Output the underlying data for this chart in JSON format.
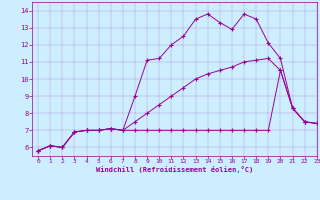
{
  "xlabel": "Windchill (Refroidissement éolien,°C)",
  "background_color": "#cceeff",
  "line_color": "#990099",
  "xlim": [
    -0.5,
    23
  ],
  "ylim": [
    5.5,
    14.5
  ],
  "xticks": [
    0,
    1,
    2,
    3,
    4,
    5,
    6,
    7,
    8,
    9,
    10,
    11,
    12,
    13,
    14,
    15,
    16,
    17,
    18,
    19,
    20,
    21,
    22,
    23
  ],
  "yticks": [
    6,
    7,
    8,
    9,
    10,
    11,
    12,
    13,
    14
  ],
  "series1_x": [
    0,
    1,
    2,
    3,
    4,
    5,
    6,
    7,
    8,
    9,
    10,
    11,
    12,
    13,
    14,
    15,
    16,
    17,
    18,
    19,
    20,
    21,
    22,
    23
  ],
  "series1_y": [
    5.8,
    6.1,
    6.0,
    6.9,
    7.0,
    7.0,
    7.1,
    7.0,
    9.0,
    11.1,
    11.2,
    12.0,
    12.5,
    13.5,
    13.8,
    13.3,
    12.9,
    13.8,
    13.5,
    12.1,
    11.2,
    8.3,
    7.5,
    7.4
  ],
  "series2_x": [
    0,
    1,
    2,
    3,
    4,
    5,
    6,
    7,
    8,
    9,
    10,
    11,
    12,
    13,
    14,
    15,
    16,
    17,
    18,
    19,
    20,
    21,
    22,
    23
  ],
  "series2_y": [
    5.8,
    6.1,
    6.0,
    6.9,
    7.0,
    7.0,
    7.1,
    7.0,
    7.0,
    7.0,
    7.0,
    7.0,
    7.0,
    7.0,
    7.0,
    7.0,
    7.0,
    7.0,
    7.0,
    7.0,
    10.5,
    8.3,
    7.5,
    7.4
  ],
  "series3_x": [
    0,
    1,
    2,
    3,
    4,
    5,
    6,
    7,
    8,
    9,
    10,
    11,
    12,
    13,
    14,
    15,
    16,
    17,
    18,
    19,
    20,
    21,
    22,
    23
  ],
  "series3_y": [
    5.8,
    6.1,
    6.0,
    6.9,
    7.0,
    7.0,
    7.1,
    7.0,
    7.5,
    8.0,
    8.5,
    9.0,
    9.5,
    10.0,
    10.3,
    10.5,
    10.7,
    11.0,
    11.1,
    11.2,
    10.5,
    8.3,
    7.5,
    7.4
  ],
  "figsize": [
    3.2,
    2.0
  ],
  "dpi": 100
}
